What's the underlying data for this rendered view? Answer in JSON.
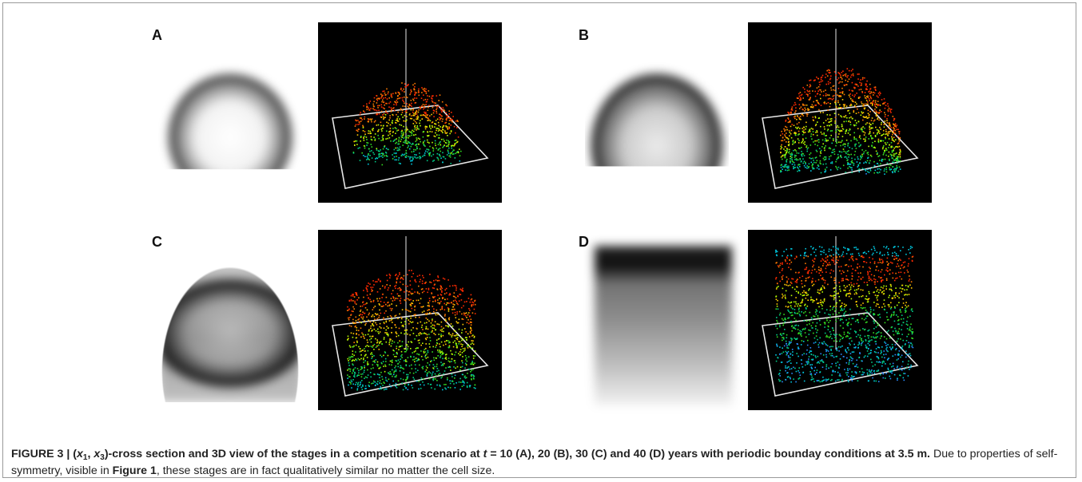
{
  "figure": {
    "panels": [
      {
        "letter": "A",
        "stage": 10,
        "shape": "dome-small"
      },
      {
        "letter": "B",
        "stage": 20,
        "shape": "dome-large"
      },
      {
        "letter": "C",
        "stage": 30,
        "shape": "arch"
      },
      {
        "letter": "D",
        "stage": 40,
        "shape": "block"
      }
    ],
    "colors": {
      "view_background": "#000000",
      "axes": "#e6e6e6",
      "point_palette": [
        "#ff2a00",
        "#ff7a00",
        "#ffcc00",
        "#b8ff00",
        "#33dd22",
        "#00cc88",
        "#00c8e0",
        "#2a8cff"
      ]
    }
  },
  "caption": {
    "label": "FIGURE 3 |",
    "title_pre": "(",
    "x1": "x",
    "x1_sub": "1",
    "sep": ", ",
    "x3": "x",
    "x3_sub": "3",
    "title_mid": ")-cross section and 3D view of the stages in a competition scenario at ",
    "t": "t",
    "title_eq": " = 10 (A), 20 (B), 30 (C) and 40 (D) years with periodic bounday conditions at 3.5 m.",
    "body_pre": " Due to properties of self-symmetry, visible in ",
    "ref": "Figure 1",
    "body_post": ", these stages are in fact qualitatively similar no matter the cell size."
  }
}
